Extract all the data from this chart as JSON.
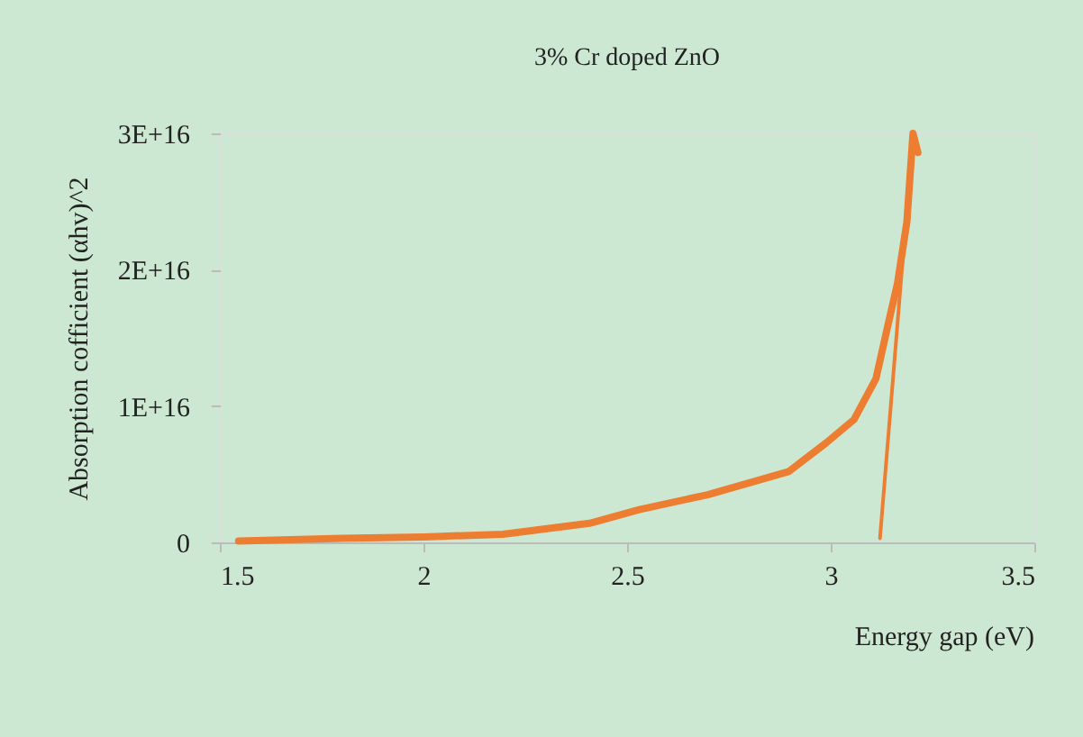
{
  "chart_data": {
    "type": "line",
    "title": "3% Cr doped ZnO",
    "xlabel": "Energy gap (eV)",
    "ylabel": "Absorption cofficient (αhv)^2",
    "xlim": [
      1.5,
      3.5
    ],
    "xticks": [
      1.5,
      2,
      2.5,
      3,
      3.5
    ],
    "ylim": [
      0,
      3e+16
    ],
    "yticks": [
      0,
      {
        "value": 1e+16,
        "label": "1E+16"
      },
      {
        "value": 2e+16,
        "label": "2E+16"
      },
      {
        "value": 3e+16,
        "label": "3E+16"
      }
    ],
    "grid": false,
    "marker": "none",
    "line_style": "solid",
    "series": [
      {
        "color": "#ed7d31",
        "x": [
          1.546,
          1.8,
          2.0,
          2.195,
          2.408,
          2.53,
          2.698,
          2.897,
          2.989,
          3.057,
          3.111,
          3.141,
          3.164,
          3.187,
          3.202,
          3.214
        ],
        "values": [
          100000000000000.0,
          300000000000000.0,
          400000000000000.0,
          600000000000000.0,
          1400000000000000.0,
          2400000000000000.0,
          3500000000000000.0,
          5200000000000000.0,
          7300000000000000.0,
          9000000000000000.0,
          1.2e+16,
          1.6e+16,
          1.9e+16,
          2.35e+16,
          3e+16,
          2.86e+16
        ]
      },
      {
        "color": "#ed7d31",
        "x": [
          3.121,
          3.202
        ],
        "values": [
          300000000000000.0,
          3e+16
        ]
      }
    ]
  }
}
